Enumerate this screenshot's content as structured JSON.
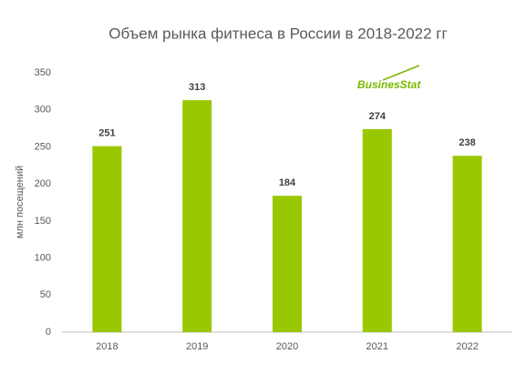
{
  "chart_data": {
    "type": "bar",
    "title": "Объем рынка фитнеса в России в 2018-2022 гг",
    "y_label": "млн посещений",
    "watermark": "BusinesStat",
    "categories": [
      "2018",
      "2019",
      "2020",
      "2021",
      "2022"
    ],
    "values": [
      251,
      313,
      184,
      274,
      238
    ],
    "color": "#99c800",
    "ylim": [
      0,
      350
    ],
    "yticks": [
      0,
      50,
      100,
      150,
      200,
      250,
      300,
      350
    ],
    "grid": false
  }
}
